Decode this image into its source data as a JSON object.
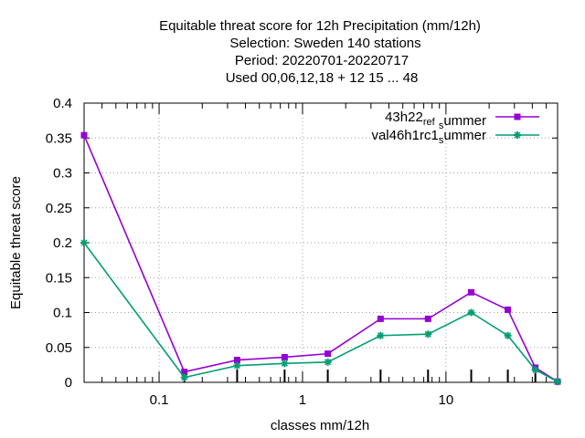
{
  "chart_data": {
    "type": "line",
    "title_lines": [
      "Equitable threat score  for 12h Precipitation (mm/12h)",
      "Selection: Sweden    140 stations",
      "Period: 20220701-20220717",
      "Used  00,06,12,18  + 12 15 ... 48"
    ],
    "xlabel": "classes mm/12h",
    "ylabel": "Equitable threat score",
    "x_scale": "log",
    "xlim": [
      0.03,
      60
    ],
    "ylim": [
      0,
      0.4
    ],
    "y_ticks": [
      0,
      0.05,
      0.1,
      0.15,
      0.2,
      0.25,
      0.3,
      0.35,
      0.4
    ],
    "y_tick_labels": [
      "0",
      "0.05",
      "0.1",
      "0.15",
      "0.2",
      "0.25",
      "0.3",
      "0.35",
      "0.4"
    ],
    "x_major_ticks": [
      0.1,
      1,
      10
    ],
    "x_tick_labels": [
      "0.1",
      "1",
      "10"
    ],
    "grid": true,
    "legend_position": "top-right",
    "x": [
      0.03,
      0.15,
      0.35,
      0.75,
      1.5,
      3.5,
      7.5,
      15,
      27,
      42,
      60
    ],
    "series": [
      {
        "name": "43h22_ref_summer",
        "label_parts": [
          "43h22",
          "ref",
          "s",
          "ummer"
        ],
        "color": "#9400d3",
        "marker": "square",
        "values": [
          0.354,
          0.015,
          0.032,
          0.036,
          0.041,
          0.091,
          0.091,
          0.129,
          0.104,
          0.021,
          0.001
        ]
      },
      {
        "name": "val46h1rc1_summer",
        "label_parts": [
          "val46h1rc1",
          "s",
          "ummer"
        ],
        "color": "#009e73",
        "marker": "star",
        "values": [
          0.2,
          0.007,
          0.024,
          0.027,
          0.029,
          0.067,
          0.069,
          0.1,
          0.067,
          0.018,
          0.001
        ]
      }
    ]
  }
}
